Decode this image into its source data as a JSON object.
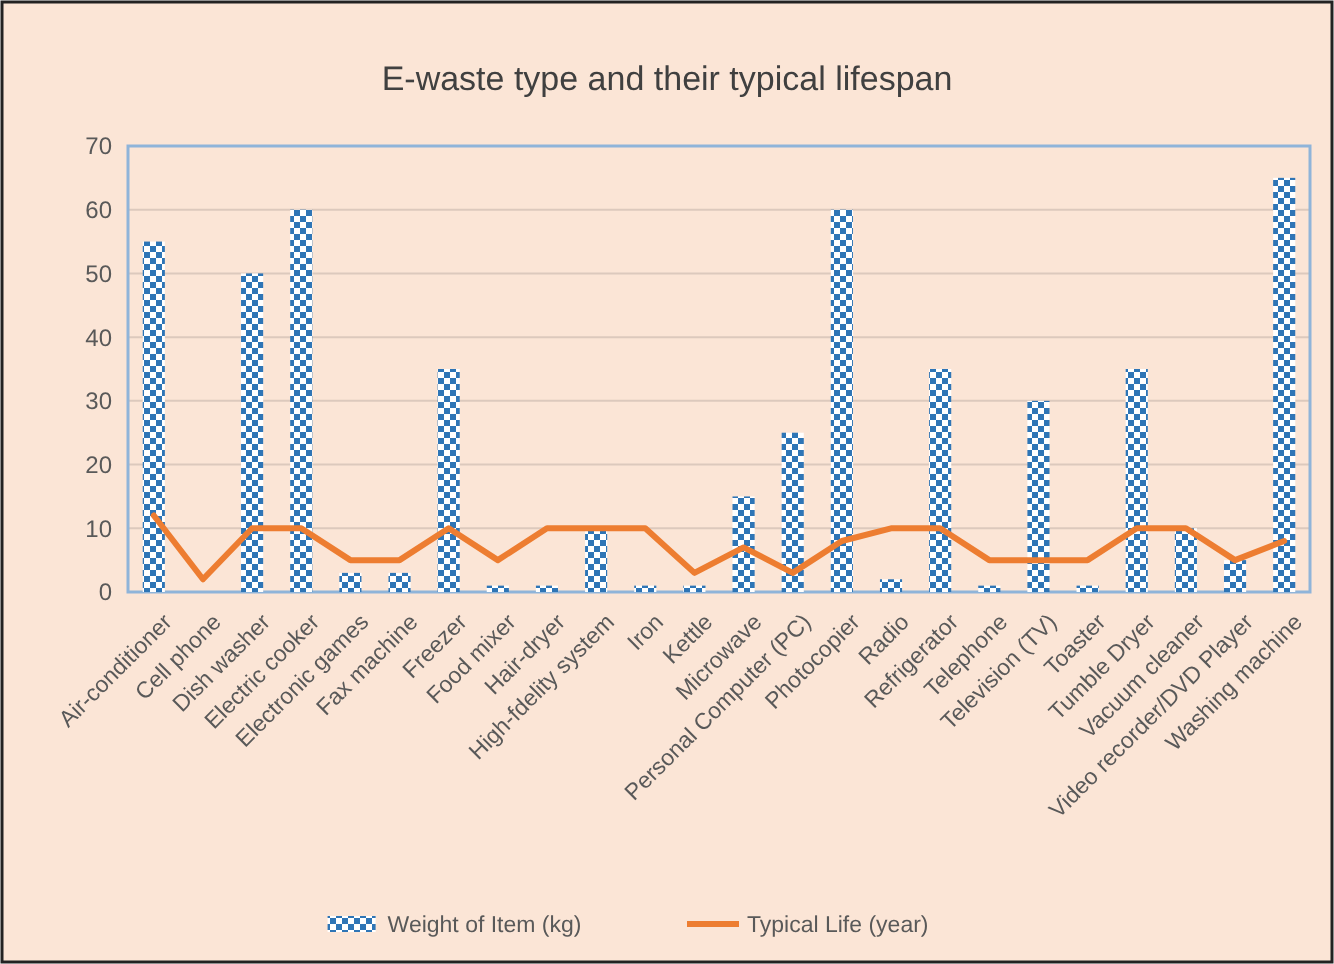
{
  "chart_data": {
    "type": "bar",
    "title": "E-waste type and their typical lifespan",
    "categories": [
      "Air-conditioner",
      "Cell phone",
      "Dish washer",
      "Electric cooker",
      "Electronic games",
      "Fax machine",
      "Freezer",
      "Food mixer",
      "Hair-dryer",
      "High-fdelity system",
      "Iron",
      "Kettle",
      "Microwave",
      "Personal Computer (PC)",
      "Photocopier",
      "Radio",
      "Refrigerator",
      "Telephone",
      "Television (TV)",
      "Toaster",
      "Tumble Dryer",
      "Vacuum cleaner",
      "Video recorder/DVD Player",
      "Washing machine"
    ],
    "series": [
      {
        "name": "Weight of Item (kg)",
        "color": "#2e75b6",
        "values": [
          55,
          0,
          50,
          60,
          3,
          3,
          35,
          1,
          1,
          10,
          1,
          1,
          15,
          25,
          60,
          2,
          35,
          1,
          30,
          1,
          35,
          10,
          5,
          65
        ]
      },
      {
        "name": "Typical Life (year)",
        "type": "line",
        "color": "#ed7d31",
        "values": [
          12,
          2,
          10,
          10,
          5,
          5,
          10,
          5,
          10,
          10,
          10,
          3,
          7,
          3,
          8,
          10,
          10,
          5,
          5,
          5,
          10,
          10,
          5,
          8
        ]
      }
    ],
    "ylim": [
      0,
      70
    ],
    "yticks": [
      0,
      10,
      20,
      30,
      40,
      50,
      60,
      70
    ],
    "grid": "y",
    "legend": "bottom",
    "marker": "none",
    "line_style": "solid"
  }
}
